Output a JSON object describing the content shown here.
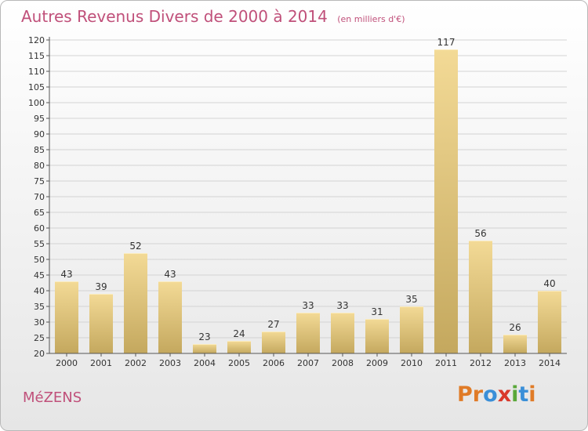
{
  "header": {
    "title": "Autres Revenus Divers de 2000 à 2014",
    "unit": "(en milliers d'€)"
  },
  "footer": {
    "commune": "MéZENS",
    "logo": "Proxiti"
  },
  "colors": {
    "title": "#c0507a",
    "bar_light": "#f3da96",
    "bar_dark": "#c4a85e",
    "logo_letters": [
      "#e07b27",
      "#e07b27",
      "#3a8fd8",
      "#d9382a",
      "#5aa83a",
      "#3a8fd8",
      "#e07b27"
    ]
  },
  "chart_data": {
    "type": "bar",
    "title": "Autres Revenus Divers de 2000 à 2014",
    "subtitle": "(en milliers d'€)",
    "categories": [
      "2000",
      "2001",
      "2002",
      "2003",
      "2004",
      "2005",
      "2006",
      "2007",
      "2008",
      "2009",
      "2010",
      "2011",
      "2012",
      "2013",
      "2014"
    ],
    "values": [
      43,
      39,
      52,
      43,
      23,
      24,
      27,
      33,
      33,
      31,
      35,
      117,
      56,
      26,
      40
    ],
    "ylim": [
      20,
      120
    ],
    "yticks": [
      20,
      25,
      30,
      35,
      40,
      45,
      50,
      55,
      60,
      65,
      70,
      75,
      80,
      85,
      90,
      95,
      100,
      105,
      110,
      115,
      120
    ],
    "grid": true,
    "xlabel": "",
    "ylabel": ""
  }
}
